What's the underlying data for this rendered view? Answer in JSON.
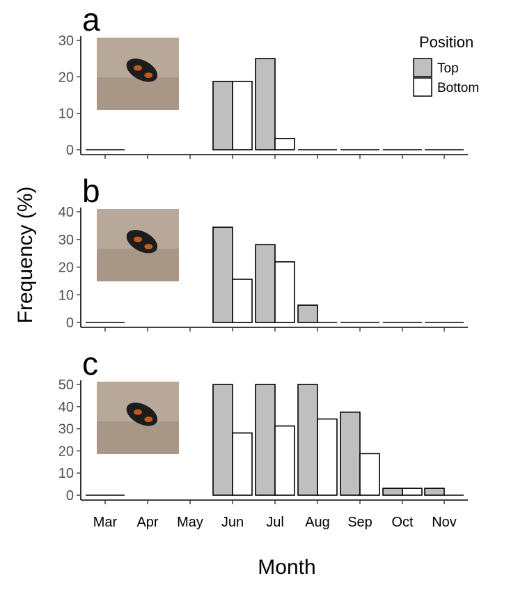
{
  "figure": {
    "ylabel": "Frequency (%)",
    "xlabel": "Month"
  },
  "legend": {
    "title": "Position",
    "items": [
      {
        "label": "Top",
        "color": "#bfbfbf"
      },
      {
        "label": "Bottom",
        "color": "#ffffff"
      }
    ]
  },
  "chart_data": [
    {
      "type": "bar",
      "panel": "a",
      "categories": [
        "Mar",
        "Apr",
        "May",
        "Jun",
        "Jul",
        "Aug",
        "Sep",
        "Oct",
        "Nov"
      ],
      "series": [
        {
          "name": "Top",
          "values": [
            0,
            null,
            null,
            18.75,
            25,
            0,
            0,
            0,
            0
          ]
        },
        {
          "name": "Bottom",
          "values": [
            0,
            null,
            null,
            18.75,
            3.1,
            0,
            0,
            0,
            0
          ]
        }
      ],
      "yticks": [
        0,
        10,
        20,
        30
      ],
      "ylim": [
        0,
        30
      ],
      "grid": false,
      "legend_placement": "top-right",
      "photo": "beetle-photo"
    },
    {
      "type": "bar",
      "panel": "b",
      "categories": [
        "Mar",
        "Apr",
        "May",
        "Jun",
        "Jul",
        "Aug",
        "Sep",
        "Oct",
        "Nov"
      ],
      "series": [
        {
          "name": "Top",
          "values": [
            0,
            null,
            null,
            34.4,
            28.1,
            6.25,
            0,
            0,
            0
          ]
        },
        {
          "name": "Bottom",
          "values": [
            0,
            null,
            null,
            15.6,
            21.9,
            0,
            0,
            0,
            0
          ]
        }
      ],
      "yticks": [
        0,
        10,
        20,
        30,
        40
      ],
      "ylim": [
        0,
        40
      ],
      "grid": false,
      "photo": "beetle-photo"
    },
    {
      "type": "bar",
      "panel": "c",
      "categories": [
        "Mar",
        "Apr",
        "May",
        "Jun",
        "Jul",
        "Aug",
        "Sep",
        "Oct",
        "Nov"
      ],
      "series": [
        {
          "name": "Top",
          "values": [
            0,
            null,
            null,
            50,
            50,
            50,
            37.5,
            3.1,
            3.1
          ]
        },
        {
          "name": "Bottom",
          "values": [
            0,
            null,
            null,
            28.1,
            31.25,
            34.4,
            18.75,
            3.1,
            0
          ]
        }
      ],
      "yticks": [
        0,
        10,
        20,
        30,
        40,
        50
      ],
      "ylim": [
        0,
        50
      ],
      "grid": false,
      "photo": "beetle-photo"
    }
  ]
}
